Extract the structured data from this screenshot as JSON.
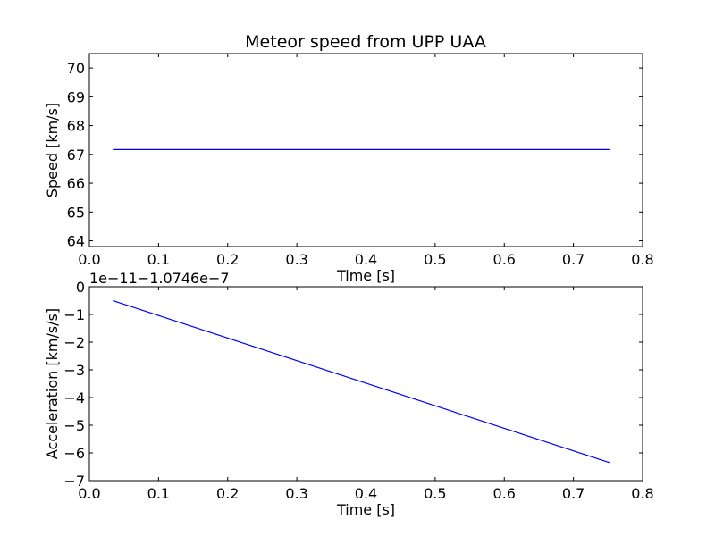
{
  "figure": {
    "title": "Meteor speed from  UPP UAA"
  },
  "chart_data": [
    {
      "type": "line",
      "title": "Meteor speed from  UPP UAA",
      "xlabel": "Time [s]",
      "ylabel": "Speed [km/s]",
      "xlim": [
        0.0,
        0.8
      ],
      "ylim": [
        63.8,
        70.5
      ],
      "xticks": [
        "0.0",
        "0.1",
        "0.2",
        "0.3",
        "0.4",
        "0.5",
        "0.6",
        "0.7",
        "0.8"
      ],
      "xtick_values": [
        0.0,
        0.1,
        0.2,
        0.3,
        0.4,
        0.5,
        0.6,
        0.7,
        0.8
      ],
      "yticks": [
        "64",
        "65",
        "66",
        "67",
        "68",
        "69",
        "70"
      ],
      "ytick_values": [
        64,
        65,
        66,
        67,
        68,
        69,
        70
      ],
      "offset_text": "",
      "grid": false,
      "series": [
        {
          "color": "#0000ff",
          "x": [
            0.034,
            0.752
          ],
          "y": [
            67.17,
            67.17
          ]
        }
      ]
    },
    {
      "type": "line",
      "title": "",
      "xlabel": "Time [s]",
      "ylabel": "Acceleration [km/s/s]",
      "xlim": [
        0.0,
        0.8
      ],
      "ylim": [
        -7,
        0
      ],
      "xticks": [
        "0.0",
        "0.1",
        "0.2",
        "0.3",
        "0.4",
        "0.5",
        "0.6",
        "0.7",
        "0.8"
      ],
      "xtick_values": [
        0.0,
        0.1,
        0.2,
        0.3,
        0.4,
        0.5,
        0.6,
        0.7,
        0.8
      ],
      "yticks": [
        "0",
        "−1",
        "−2",
        "−3",
        "−4",
        "−5",
        "−6",
        "−7"
      ],
      "ytick_values": [
        0,
        -1,
        -2,
        -3,
        -4,
        -5,
        -6,
        -7
      ],
      "offset_text": "1e−11−1.0746e−7",
      "grid": false,
      "series": [
        {
          "color": "#0000ff",
          "x": [
            0.034,
            0.752
          ],
          "y": [
            -0.5,
            -6.35
          ]
        }
      ]
    }
  ]
}
